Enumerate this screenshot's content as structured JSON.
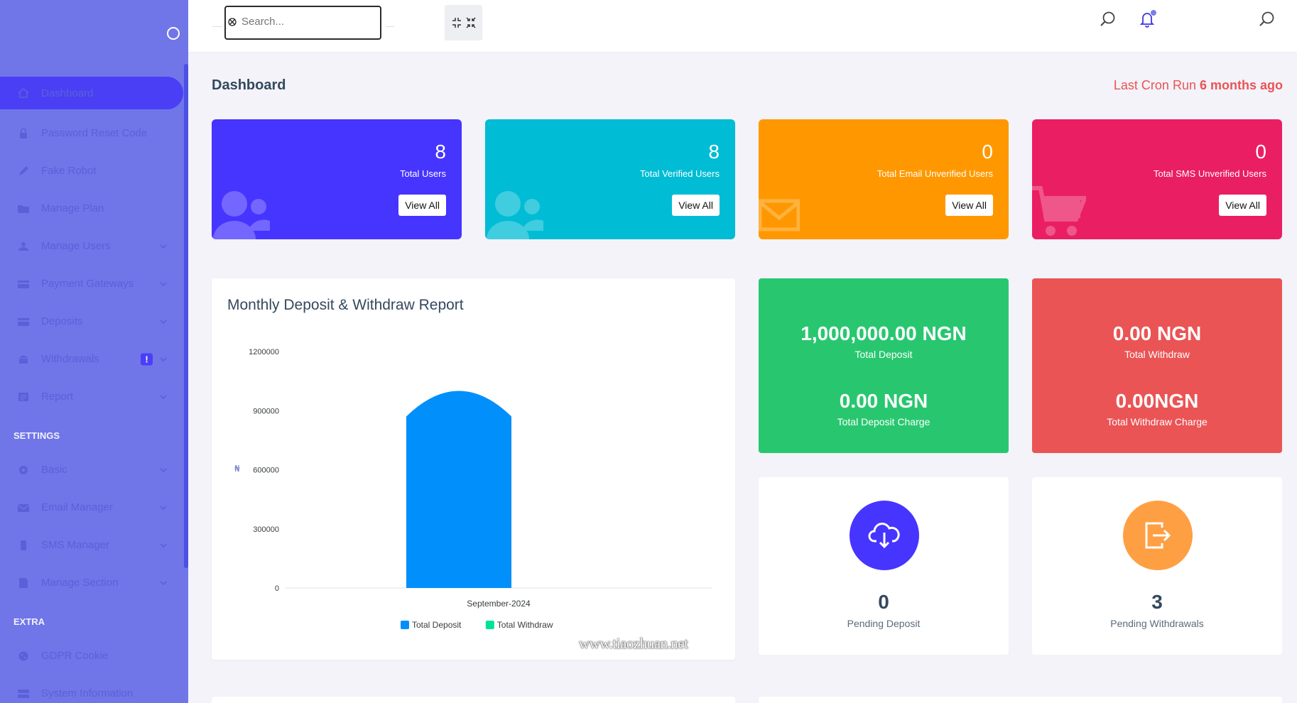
{
  "sidebar": {
    "items": [
      {
        "label": "Dashboard",
        "icon": "home-icon",
        "active": true
      },
      {
        "label": "Password Reset Code",
        "icon": "lock-icon"
      },
      {
        "label": "Fake Robot",
        "icon": "pen-icon"
      },
      {
        "label": "Manage Plan",
        "icon": "folder-icon"
      },
      {
        "label": "Manage Users",
        "icon": "users-icon",
        "has_submenu": true
      },
      {
        "label": "Payment Gateways",
        "icon": "credit-card-icon",
        "has_submenu": true
      },
      {
        "label": "Deposits",
        "icon": "credit-card-icon",
        "has_submenu": true
      },
      {
        "label": "Withdrawals",
        "icon": "bank-icon",
        "has_submenu": true,
        "badge": "!"
      },
      {
        "label": "Report",
        "icon": "list-icon",
        "has_submenu": true
      }
    ],
    "settings_heading": "SETTINGS",
    "settings_items": [
      {
        "label": "Basic",
        "icon": "gear-icon",
        "has_submenu": true
      },
      {
        "label": "Email Manager",
        "icon": "envelope-icon",
        "has_submenu": true
      },
      {
        "label": "SMS Manager",
        "icon": "mobile-icon",
        "has_submenu": true
      },
      {
        "label": "Manage Section",
        "icon": "document-icon",
        "has_submenu": true
      }
    ],
    "extra_heading": "EXTRA",
    "extra_items": [
      {
        "label": "GDPR Cookie",
        "icon": "cookie-icon"
      },
      {
        "label": "System Information",
        "icon": "server-icon"
      }
    ]
  },
  "topbar": {
    "search_placeholder": "Search..."
  },
  "page": {
    "title": "Dashboard",
    "cron_label": "Last Cron Run",
    "cron_value": "6 months ago"
  },
  "stats": [
    {
      "value": "8",
      "label": "Total Users",
      "button": "View All",
      "color": "#4634ff",
      "icon": "users-icon"
    },
    {
      "value": "8",
      "label": "Total Verified Users",
      "button": "View All",
      "color": "#00bcd4",
      "icon": "users-icon"
    },
    {
      "value": "0",
      "label": "Total Email Unverified Users",
      "button": "View All",
      "color": "#ff9800",
      "icon": "envelope-icon"
    },
    {
      "value": "0",
      "label": "Total SMS Unverified Users",
      "button": "View All",
      "color": "#ea1e63",
      "icon": "cart-icon"
    }
  ],
  "chart_card": {
    "title": "Monthly Deposit & Withdraw Report",
    "watermark": "www.tiaozhuan.net"
  },
  "chart_data": {
    "type": "bar",
    "title": "Monthly Deposit & Withdraw Report",
    "categories": [
      "September-2024"
    ],
    "series": [
      {
        "name": "Total Deposit",
        "values": [
          1000000
        ],
        "color": "#008ffb"
      },
      {
        "name": "Total Withdraw",
        "values": [
          0
        ],
        "color": "#00e396"
      }
    ],
    "y_ticks": [
      "1200000",
      "900000",
      "600000",
      "300000",
      "0"
    ],
    "ylim": [
      0,
      1200000
    ],
    "legend_position": "bottom",
    "grid": false
  },
  "money": {
    "deposit": {
      "value": "1,000,000.00 NGN",
      "label": "Total Deposit",
      "charge_value": "0.00 NGN",
      "charge_label": "Total Deposit Charge",
      "color": "#28c76f"
    },
    "withdraw": {
      "value": "0.00 NGN",
      "label": "Total Withdraw",
      "charge_value": "0.00NGN",
      "charge_label": "Total Withdraw Charge",
      "color": "#ea5455"
    }
  },
  "pending": {
    "deposit": {
      "value": "0",
      "label": "Pending Deposit",
      "icon": "cloud-download-icon",
      "color": "#4634ff"
    },
    "withdraw": {
      "value": "3",
      "label": "Pending Withdrawals",
      "icon": "sign-out-icon",
      "color": "#ff9f43"
    }
  }
}
